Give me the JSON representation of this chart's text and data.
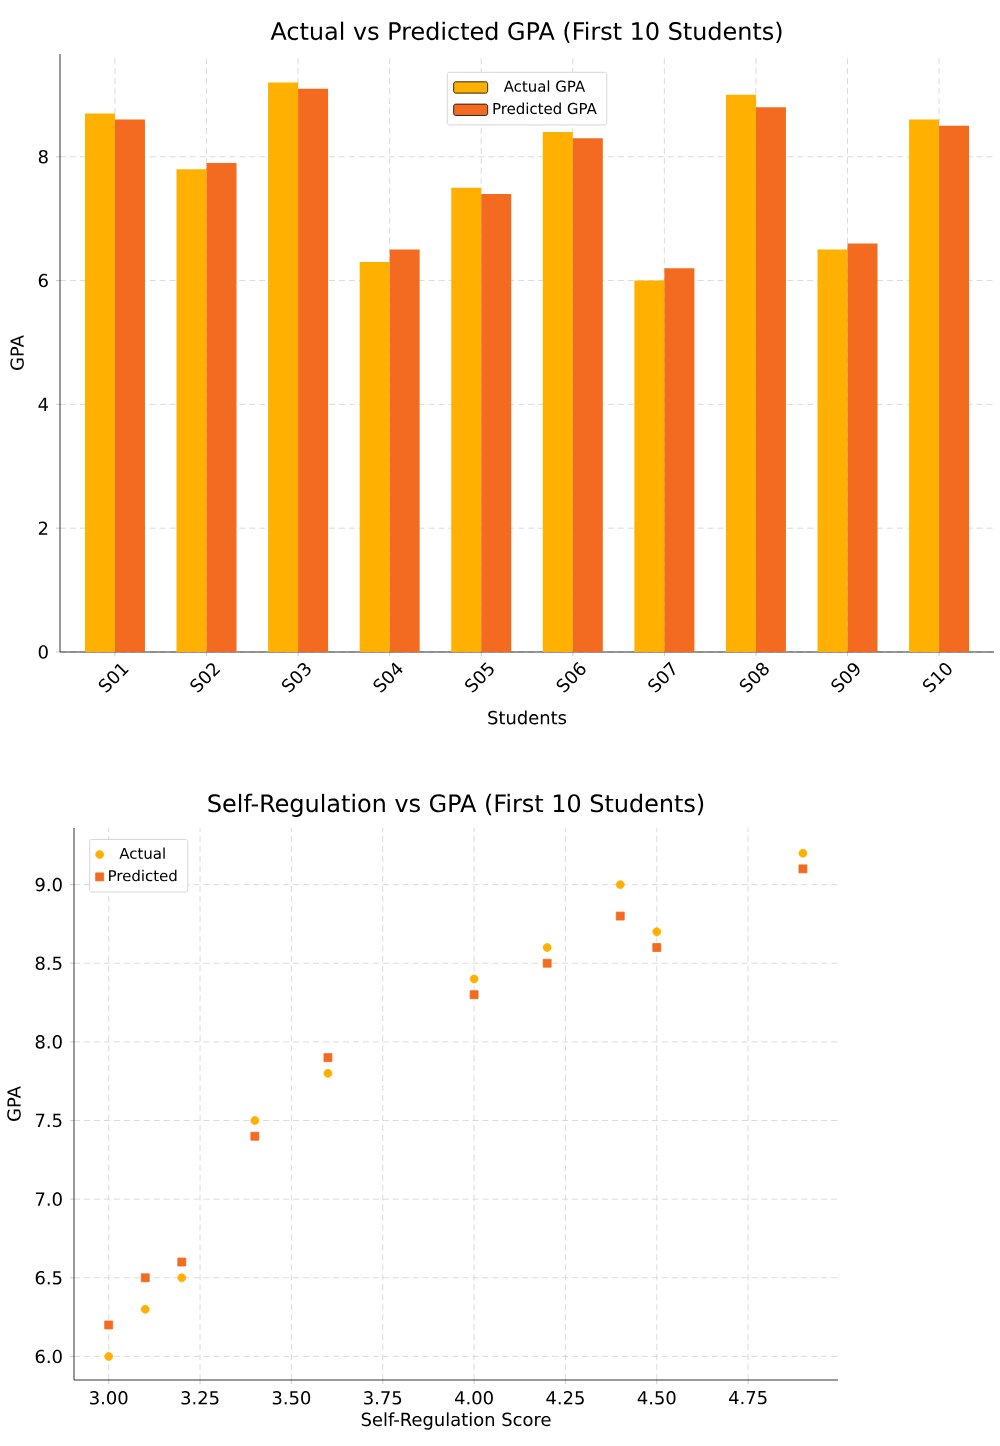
{
  "chart_data": [
    {
      "type": "bar",
      "title": "Actual vs Predicted GPA (First 10 Students)",
      "xlabel": "Students",
      "ylabel": "GPA",
      "categories": [
        "S01",
        "S02",
        "S03",
        "S04",
        "S05",
        "S06",
        "S07",
        "S08",
        "S09",
        "S10"
      ],
      "series": [
        {
          "name": "Actual GPA",
          "color": "#ffb000",
          "values": [
            8.7,
            7.8,
            9.2,
            6.3,
            7.5,
            8.4,
            6.0,
            9.0,
            6.5,
            8.6
          ]
        },
        {
          "name": "Predicted GPA",
          "color": "#f26b21",
          "values": [
            8.6,
            7.9,
            9.1,
            6.5,
            7.4,
            8.3,
            6.2,
            8.8,
            6.6,
            8.5
          ]
        }
      ],
      "ylim": [
        0,
        9.66
      ],
      "yticks": [
        0,
        2,
        4,
        6,
        8
      ],
      "grid": true,
      "legend": "top"
    },
    {
      "type": "scatter",
      "title": "Self-Regulation vs GPA (First 10 Students)",
      "xlabel": "Self-Regulation Score",
      "ylabel": "GPA",
      "x": [
        4.5,
        3.6,
        4.9,
        3.1,
        3.4,
        4.0,
        3.0,
        4.4,
        3.2,
        4.2
      ],
      "series": [
        {
          "name": "Actual",
          "color": "#ffb000",
          "marker": "circle",
          "values": [
            8.7,
            7.8,
            9.2,
            6.3,
            7.5,
            8.4,
            6.0,
            9.0,
            6.5,
            8.6
          ]
        },
        {
          "name": "Predicted",
          "color": "#f26b21",
          "marker": "square",
          "values": [
            8.6,
            7.9,
            9.1,
            6.5,
            7.4,
            8.3,
            6.2,
            8.8,
            6.6,
            8.5
          ]
        }
      ],
      "xlim": [
        2.905,
        4.996
      ],
      "ylim": [
        5.85,
        9.36
      ],
      "xticks": [
        {
          "value": 3.0,
          "label": "3.00"
        },
        {
          "value": 3.25,
          "label": "3.25"
        },
        {
          "value": 3.5,
          "label": "3.50"
        },
        {
          "value": 3.75,
          "label": "3.75"
        },
        {
          "value": 4.0,
          "label": "4.00"
        },
        {
          "value": 4.25,
          "label": "4.25"
        },
        {
          "value": 4.5,
          "label": "4.50"
        },
        {
          "value": 4.75,
          "label": "4.75"
        }
      ],
      "yticks": [
        {
          "value": 6.0,
          "label": "6.0"
        },
        {
          "value": 6.5,
          "label": "6.5"
        },
        {
          "value": 7.0,
          "label": "7.0"
        },
        {
          "value": 7.5,
          "label": "7.5"
        },
        {
          "value": 8.0,
          "label": "8.0"
        },
        {
          "value": 8.5,
          "label": "8.5"
        },
        {
          "value": 9.0,
          "label": "9.0"
        }
      ],
      "grid": true,
      "legend": "top left"
    }
  ]
}
